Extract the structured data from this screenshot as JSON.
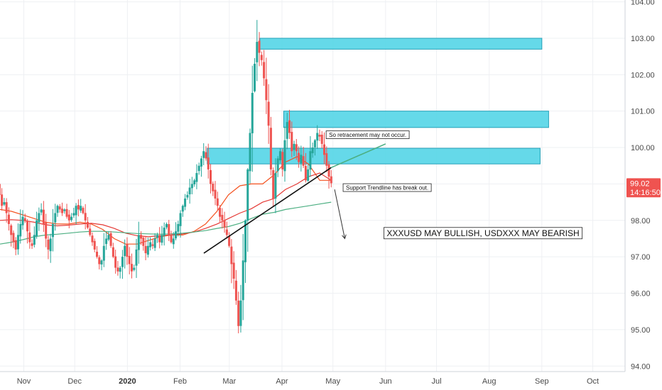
{
  "chart_data": {
    "type": "candlestick",
    "y_axis": {
      "position": "right",
      "ylim": [
        93.85,
        104.05
      ],
      "ticks": [
        "104.00",
        "103.00",
        "102.00",
        "101.00",
        "100.00",
        "99.00",
        "98.00",
        "97.00",
        "96.00",
        "95.00",
        "94.00"
      ]
    },
    "x_axis": {
      "labels": [
        {
          "text": "Nov",
          "date": "2019-11-01",
          "bold": false
        },
        {
          "text": "Dec",
          "date": "2019-12-01",
          "bold": false
        },
        {
          "text": "2020",
          "date": "2020-01-01",
          "bold": true
        },
        {
          "text": "Feb",
          "date": "2020-02-01",
          "bold": false
        },
        {
          "text": "Mar",
          "date": "2020-03-01",
          "bold": false
        },
        {
          "text": "Apr",
          "date": "2020-04-01",
          "bold": false
        },
        {
          "text": "May",
          "date": "2020-05-01",
          "bold": false
        },
        {
          "text": "Jun",
          "date": "2020-06-01",
          "bold": false
        },
        {
          "text": "Jul",
          "date": "2020-07-01",
          "bold": false
        },
        {
          "text": "Aug",
          "date": "2020-08-01",
          "bold": false
        },
        {
          "text": "Sep",
          "date": "2020-09-01",
          "bold": false
        },
        {
          "text": "Oct",
          "date": "2020-10-01",
          "bold": false
        }
      ],
      "range": [
        "2019-10-18",
        "2020-10-20"
      ]
    },
    "grid": true,
    "colors": {
      "up": "#26a69a",
      "down": "#ef5350",
      "ma_fast": "#f4511e",
      "ma_slow": "#e53935",
      "ma_long": "#4caf82",
      "zone_fill": "#5dd8e8",
      "zone_border": "#1b9db5",
      "price_tag": "#ef5350",
      "trendline": "#111111",
      "grid": "#eef0f3"
    },
    "price_close": [
      99.2,
      99.0,
      98.7,
      98.4,
      98.5,
      98.2,
      97.9,
      97.6,
      97.4,
      97.2,
      97.6,
      97.9,
      98.1,
      98.0,
      97.7,
      97.4,
      97.3,
      97.6,
      98.0,
      98.2,
      98.3,
      97.9,
      97.5,
      97.2,
      97.5,
      97.9,
      98.2,
      98.4,
      98.3,
      98.2,
      98.3,
      98.1,
      98.0,
      98.1,
      98.2,
      98.4,
      98.3,
      98.4,
      98.2,
      98.0,
      97.8,
      97.6,
      97.4,
      97.2,
      97.0,
      96.8,
      96.9,
      97.3,
      97.5,
      97.6,
      97.3,
      97.0,
      96.7,
      96.6,
      96.7,
      97.0,
      97.3,
      97.0,
      96.8,
      96.6,
      96.7,
      97.2,
      97.6,
      97.5,
      97.3,
      97.1,
      97.3,
      97.4,
      97.3,
      97.5,
      97.6,
      97.4,
      97.6,
      97.8,
      97.9,
      97.6,
      97.4,
      97.5,
      97.7,
      97.9,
      98.2,
      98.4,
      98.6,
      98.7,
      98.9,
      99.0,
      99.1,
      99.3,
      99.5,
      99.7,
      99.9,
      99.7,
      99.4,
      99.0,
      98.8,
      98.6,
      98.4,
      98.1,
      98.0,
      97.8,
      97.6,
      97.3,
      96.8,
      96.4,
      95.8,
      95.1,
      95.8,
      96.9,
      98.0,
      99.4,
      100.4,
      101.5,
      102.3,
      102.9,
      102.6,
      102.4,
      101.9,
      101.3,
      100.6,
      99.4,
      98.6,
      99.3,
      99.7,
      99.9,
      99.4,
      100.2,
      100.7,
      100.4,
      99.9,
      100.1,
      99.9,
      99.6,
      99.8,
      99.5,
      99.1,
      99.4,
      99.9,
      100.0,
      100.2,
      100.4,
      100.3,
      100.1,
      99.8,
      99.5,
      99.2,
      99.02
    ],
    "moving_averages": [
      {
        "color_key": "ma_fast",
        "values": [
          98.3,
          98.25,
          98.15,
          98.05,
          97.95,
          97.9,
          97.9,
          97.95,
          97.9,
          97.75,
          97.5,
          97.35,
          97.35,
          97.45,
          97.55,
          97.6,
          97.6,
          97.7,
          97.9,
          98.25,
          98.7,
          98.95,
          99.0,
          99.0,
          99.25,
          99.6,
          99.75,
          99.55,
          99.1,
          99.1
        ]
      },
      {
        "color_key": "ma_slow",
        "values": [
          98.0,
          98.02,
          98.0,
          97.95,
          97.88,
          97.85,
          97.87,
          97.9,
          97.92,
          97.88,
          97.78,
          97.65,
          97.58,
          97.55,
          97.58,
          97.6,
          97.63,
          97.68,
          97.78,
          97.9,
          98.05,
          98.2,
          98.32,
          98.5,
          98.6,
          98.85,
          99.0,
          99.2,
          99.3,
          99.1
        ]
      },
      {
        "color_key": "ma_long",
        "values": [
          97.35,
          97.4,
          97.47,
          97.55,
          97.6,
          97.62,
          97.65,
          97.68,
          97.7,
          97.7,
          97.68,
          97.66,
          97.64,
          97.63,
          97.62,
          97.63,
          97.65,
          97.68,
          97.72,
          97.78,
          97.83,
          97.92,
          98.05,
          98.17,
          98.22,
          98.3,
          98.35,
          98.4,
          98.45,
          98.5
        ]
      }
    ],
    "zones": [
      {
        "y_top": 103.0,
        "y_bottom": 102.7,
        "x_start": "2020-03-19",
        "x_end": "2020-09-01"
      },
      {
        "y_top": 101.0,
        "y_bottom": 100.55,
        "x_start": "2020-04-02",
        "x_end": "2020-09-05"
      },
      {
        "y_top": 99.98,
        "y_bottom": 99.55,
        "x_start": "2020-02-17",
        "x_end": "2020-08-31"
      }
    ],
    "trendlines": [
      {
        "from": {
          "date": "2020-02-15",
          "price": 97.1
        },
        "to": {
          "date": "2020-04-30",
          "price": 99.45
        },
        "color_key": "trendline"
      },
      {
        "from": {
          "date": "2020-04-30",
          "price": 99.45
        },
        "to": {
          "date": "2020-06-01",
          "price": 100.1
        },
        "color_key": "ma_long"
      }
    ],
    "arrow": {
      "from": {
        "date": "2020-05-02",
        "price": 98.85
      },
      "to": {
        "date": "2020-05-08",
        "price": 97.5
      }
    },
    "annotations": [
      {
        "text": "So retracement may not occur.",
        "date": "2020-04-27",
        "price": 100.35,
        "size": "small"
      },
      {
        "text": "Support Trendline has break out.",
        "date": "2020-05-07",
        "price": 98.9,
        "size": "small"
      },
      {
        "text": "XXXUSD MAY BULLISH, USDXXX MAY BEARISH",
        "date": "2020-05-31",
        "price": 97.65,
        "size": "large"
      }
    ],
    "price_tags": [
      {
        "text": "99.02",
        "price": 99.02
      },
      {
        "text": "14:16:50",
        "price": 98.77
      }
    ]
  }
}
